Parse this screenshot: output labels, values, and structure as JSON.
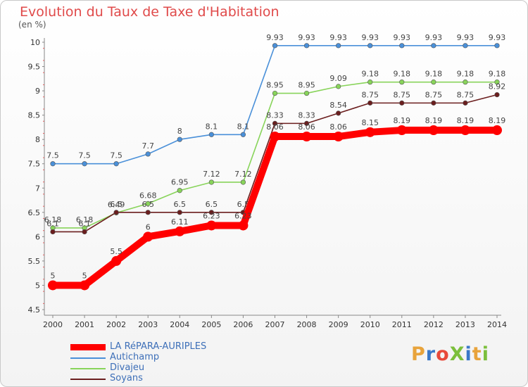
{
  "header": {
    "title": "Evolution du Taux de Taxe d'Habitation",
    "unit": "(en %)"
  },
  "logo": {
    "text": "ProXiti",
    "colors": [
      "#e8a33b",
      "#3a78c8",
      "#e8493a",
      "#7cbf3c",
      "#3a78c8",
      "#e8a33b",
      "#7cbf3c"
    ]
  },
  "chart_data": {
    "type": "line",
    "title": "Evolution du Taux de Taxe d'Habitation",
    "ylabel": "(en %)",
    "xlabel": "",
    "ylim": [
      4.5,
      10
    ],
    "yticks": [
      "4.5",
      "5",
      "5.5",
      "6",
      "6.5",
      "7",
      "7.5",
      "8",
      "8.5",
      "9",
      "9.5",
      "10"
    ],
    "grid": false,
    "legend": "bottom-left",
    "categories": [
      "2000",
      "2001",
      "2002",
      "2003",
      "2004",
      "2005",
      "2006",
      "2007",
      "2008",
      "2009",
      "2010",
      "2011",
      "2012",
      "2013",
      "2014"
    ],
    "series": [
      {
        "name": "LA RéPARA-AURIPLES",
        "color": "#ff0000",
        "values": [
          5,
          5,
          5.5,
          6,
          6.11,
          6.23,
          6.23,
          8.06,
          8.06,
          8.06,
          8.15,
          8.19,
          8.19,
          8.19,
          8.19
        ],
        "labels": [
          "5",
          "5",
          "5.5",
          "6",
          "6.11",
          "6.23",
          "6.23",
          "8.06",
          "8.06",
          "8.06",
          "8.15",
          "8.19",
          "8.19",
          "8.19",
          "8.19"
        ]
      },
      {
        "name": "Autichamp",
        "color": "#4a90d9",
        "values": [
          7.5,
          7.5,
          7.5,
          7.7,
          8,
          8.1,
          8.1,
          9.93,
          9.93,
          9.93,
          9.93,
          9.93,
          9.93,
          9.93,
          9.93
        ],
        "labels": [
          "7.5",
          "7.5",
          "7.5",
          "7.7",
          "8",
          "8.1",
          "8.1",
          "9.93",
          "9.93",
          "9.93",
          "9.93",
          "9.93",
          "9.93",
          "9.93",
          "9.93"
        ]
      },
      {
        "name": "Divajeu",
        "color": "#88d45a",
        "values": [
          6.18,
          6.18,
          6.49,
          6.68,
          6.95,
          7.12,
          7.12,
          8.95,
          8.95,
          9.09,
          9.18,
          9.18,
          9.18,
          9.18,
          9.18
        ],
        "labels": [
          "6.18",
          "6.18",
          "6.49",
          "6.68",
          "6.95",
          "7.12",
          "7.12",
          "8.95",
          "8.95",
          "9.09",
          "9.18",
          "9.18",
          "9.18",
          "9.18",
          "9.18"
        ]
      },
      {
        "name": "Soyans",
        "color": "#6b1e1e",
        "values": [
          6.1,
          6.1,
          6.5,
          6.5,
          6.5,
          6.5,
          6.5,
          8.33,
          8.33,
          8.54,
          8.75,
          8.75,
          8.75,
          8.75,
          8.92
        ],
        "labels": [
          "6.1",
          "6.1",
          "6.5",
          "6.5",
          "6.5",
          "6.5",
          "6.5",
          "8.33",
          "8.33",
          "8.54",
          "8.75",
          "8.75",
          "8.75",
          "8.75",
          "8.92"
        ]
      }
    ]
  }
}
